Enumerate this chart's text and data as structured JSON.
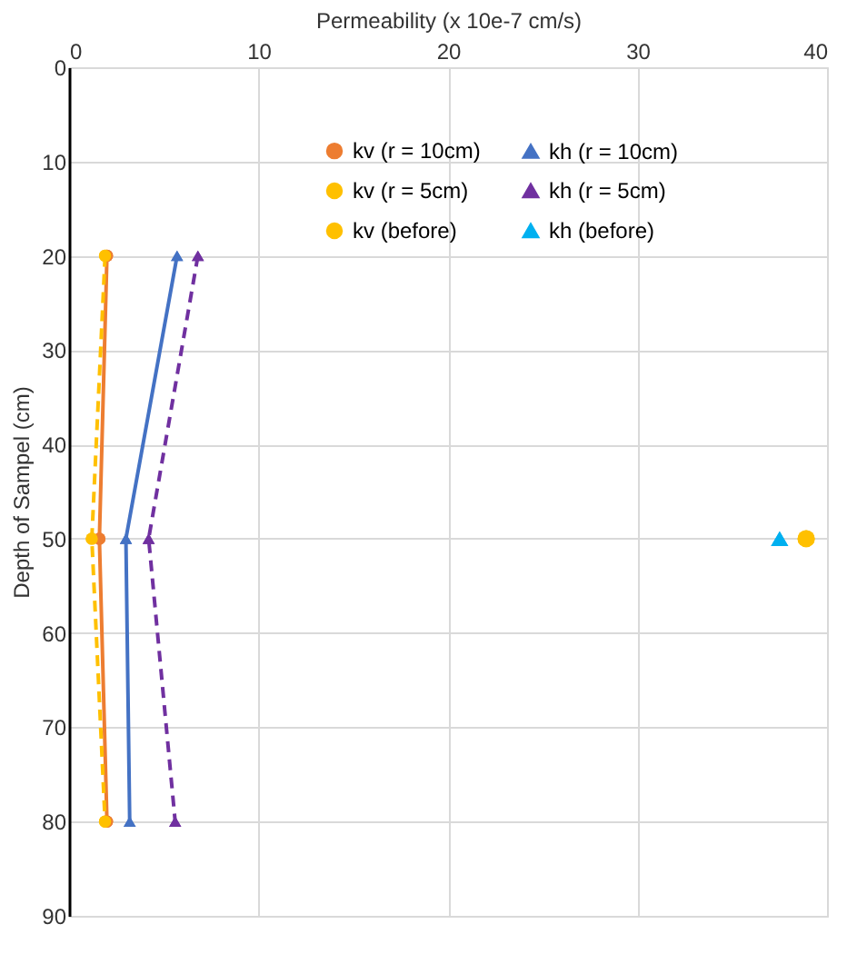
{
  "chart_data": {
    "type": "line",
    "xlabel": "Permeability (x 10e-7 cm/s)",
    "ylabel": "Depth of Sampel (cm)",
    "xlim": [
      0,
      40
    ],
    "xticks": [
      0,
      10,
      20,
      30,
      40
    ],
    "ylim": [
      90,
      0
    ],
    "yticks": [
      0,
      10,
      20,
      30,
      40,
      50,
      60,
      70,
      80,
      90
    ],
    "grid": true,
    "legend": "top right",
    "series": [
      {
        "name": "kv (r = 10cm)",
        "color": "#ed7d31",
        "type": "line",
        "marker": "circle",
        "line_style": "solid",
        "x": [
          2.0,
          1.6,
          2.0
        ],
        "values": [
          20,
          50,
          80
        ]
      },
      {
        "name": "kh (r = 10cm)",
        "color": "#4472c4",
        "type": "line",
        "marker": "triangle",
        "line_style": "solid",
        "x": [
          5.7,
          3.0,
          3.2
        ],
        "values": [
          20,
          50,
          80
        ]
      },
      {
        "name": "kv (r = 5cm)",
        "color": "#ffc000",
        "type": "line",
        "marker": "circle",
        "line_style": "dashed",
        "x": [
          1.9,
          1.2,
          1.9
        ],
        "values": [
          20,
          50,
          80
        ]
      },
      {
        "name": "kh (r = 5cm)",
        "color": "#7030a0",
        "type": "line",
        "marker": "triangle",
        "line_style": "dashed",
        "x": [
          6.8,
          4.2,
          5.6
        ],
        "values": [
          20,
          50,
          80
        ]
      },
      {
        "name": "kv (before)",
        "color": "#ffc000",
        "type": "scatter",
        "marker": "circle",
        "x": [
          38.9
        ],
        "values": [
          50
        ]
      },
      {
        "name": "kh (before)",
        "color": "#00b0f0",
        "type": "scatter",
        "marker": "triangle",
        "x": [
          37.5
        ],
        "values": [
          50
        ]
      }
    ]
  }
}
